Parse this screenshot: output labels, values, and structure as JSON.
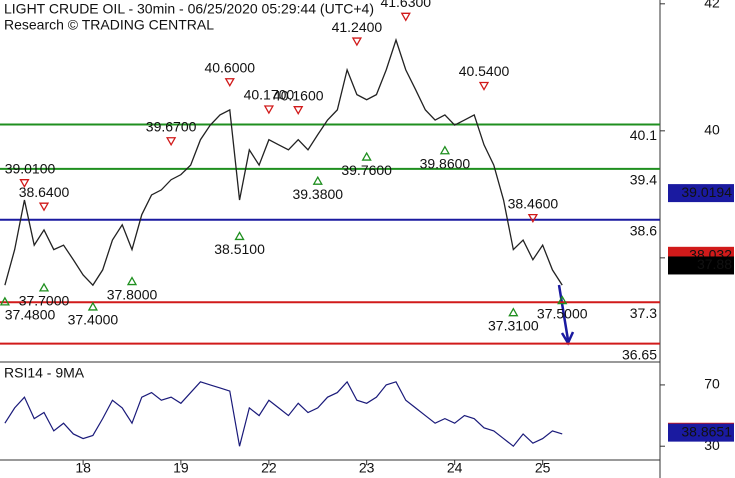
{
  "chart_data": {
    "type": "line",
    "title": "LIGHT CRUDE OIL - 30min - 06/25/2020 05:29:44 (UTC+4)",
    "subtitle": "Research © TRADING CENTRAL",
    "x": [
      0,
      1,
      2,
      3,
      4,
      5,
      6,
      7,
      8,
      9,
      10,
      11,
      12,
      13,
      14,
      15,
      16,
      17,
      18,
      19,
      20,
      21,
      22,
      23,
      24,
      25,
      26,
      27,
      28,
      29,
      30,
      31,
      32,
      33,
      34,
      35,
      36,
      37,
      38,
      39,
      40,
      41,
      42,
      43,
      44,
      45,
      46,
      47,
      48,
      49,
      50,
      51,
      52,
      53,
      54,
      55,
      56,
      57
    ],
    "xlim": [
      -0.5,
      67
    ],
    "xticks": [
      {
        "value": 8,
        "label": "18"
      },
      {
        "value": 18,
        "label": "19"
      },
      {
        "value": 27,
        "label": "22"
      },
      {
        "value": 37,
        "label": "23"
      },
      {
        "value": 46,
        "label": "24"
      },
      {
        "value": 55,
        "label": "25"
      }
    ],
    "series": [
      {
        "color": "#222222",
        "values": [
          37.57,
          38.13,
          38.91,
          38.2,
          38.44,
          38.13,
          38.2,
          37.97,
          37.73,
          37.57,
          37.81,
          38.28,
          38.52,
          38.13,
          38.68,
          38.99,
          39.07,
          39.23,
          39.31,
          39.46,
          39.86,
          40.09,
          40.25,
          40.33,
          38.91,
          39.7,
          39.46,
          39.86,
          39.78,
          39.7,
          39.86,
          39.7,
          39.94,
          40.17,
          40.33,
          40.96,
          40.57,
          40.49,
          40.57,
          40.96,
          41.43,
          40.96,
          40.65,
          40.33,
          40.17,
          40.25,
          40.09,
          40.17,
          40.25,
          39.78,
          39.46,
          38.91,
          38.13,
          38.28,
          37.97,
          38.2,
          37.81,
          37.57
        ]
      }
    ],
    "ylim": [
      36.36,
      42.06
    ],
    "yticks": [
      38,
      40,
      42
    ],
    "levels": [
      {
        "value": 40.1,
        "color": "#1f8f1f"
      },
      {
        "value": 39.4,
        "color": "#1f8f1f"
      },
      {
        "value": 38.6,
        "color": "#1a1aa0"
      },
      {
        "value": 37.3,
        "color": "#d11a1a"
      },
      {
        "value": 36.65,
        "color": "#d11a1a"
      }
    ],
    "annotations": [
      {
        "label": "37.4800",
        "value": 37.48,
        "x": 0,
        "kind": "low"
      },
      {
        "label": "39.0100",
        "value": 39.01,
        "x": 2,
        "kind": "high"
      },
      {
        "label": "37.7000",
        "value": 37.7,
        "x": 4,
        "kind": "low"
      },
      {
        "label": "38.6400",
        "value": 38.64,
        "x": 4,
        "kind": "high"
      },
      {
        "label": "37.4000",
        "value": 37.4,
        "x": 9,
        "kind": "low"
      },
      {
        "label": "37.8000",
        "value": 37.8,
        "x": 13,
        "kind": "low"
      },
      {
        "label": "39.6700",
        "value": 39.67,
        "x": 17,
        "kind": "high"
      },
      {
        "label": "40.6000",
        "value": 40.6,
        "x": 23,
        "kind": "high"
      },
      {
        "label": "38.5100",
        "value": 38.51,
        "x": 24,
        "kind": "low"
      },
      {
        "label": "40.1700",
        "value": 40.17,
        "x": 27,
        "kind": "high"
      },
      {
        "label": "40.1600",
        "value": 40.16,
        "x": 30,
        "kind": "high"
      },
      {
        "label": "39.3800",
        "value": 39.38,
        "x": 32,
        "kind": "low"
      },
      {
        "label": "41.2400",
        "value": 41.24,
        "x": 36,
        "kind": "high"
      },
      {
        "label": "39.7600",
        "value": 39.76,
        "x": 37,
        "kind": "low"
      },
      {
        "label": "41.6300",
        "value": 41.63,
        "x": 41,
        "kind": "high"
      },
      {
        "label": "39.8600",
        "value": 39.86,
        "x": 45,
        "kind": "low"
      },
      {
        "label": "40.5400",
        "value": 40.54,
        "x": 49,
        "kind": "high"
      },
      {
        "label": "38.4600",
        "value": 38.46,
        "x": 54,
        "kind": "high"
      },
      {
        "label": "37.3100",
        "value": 37.31,
        "x": 52,
        "kind": "low"
      },
      {
        "label": "37.5000",
        "value": 37.5,
        "x": 57,
        "kind": "low"
      }
    ],
    "price_tags": [
      {
        "label": "39.0194",
        "value": 39.0194,
        "color": "#1a1aa0"
      },
      {
        "label": "38.032",
        "value": 38.032,
        "color": "#d11a1a"
      },
      {
        "label": "37.88",
        "value": 37.88,
        "color": "#000000"
      }
    ],
    "rsi": {
      "title": "RSI14 - 9MA",
      "color": "#1a1a7a",
      "ylim": [
        21,
        83
      ],
      "yticks": [
        30,
        70
      ],
      "values": [
        45,
        55,
        62,
        48,
        52,
        40,
        45,
        38,
        35,
        37,
        48,
        60,
        55,
        45,
        62,
        65,
        60,
        62,
        58,
        65,
        72,
        70,
        68,
        66,
        30,
        55,
        50,
        60,
        55,
        50,
        58,
        52,
        55,
        62,
        65,
        72,
        60,
        58,
        62,
        70,
        72,
        60,
        55,
        50,
        45,
        48,
        45,
        50,
        48,
        42,
        40,
        35,
        30,
        38,
        32,
        35,
        40,
        38
      ],
      "tags": [
        {
          "label": "39.4291",
          "value": 39.4291,
          "color": "#d11a1a"
        },
        {
          "label": "38.8651",
          "value": 38.8651,
          "color": "#1a1aa0"
        }
      ]
    }
  }
}
